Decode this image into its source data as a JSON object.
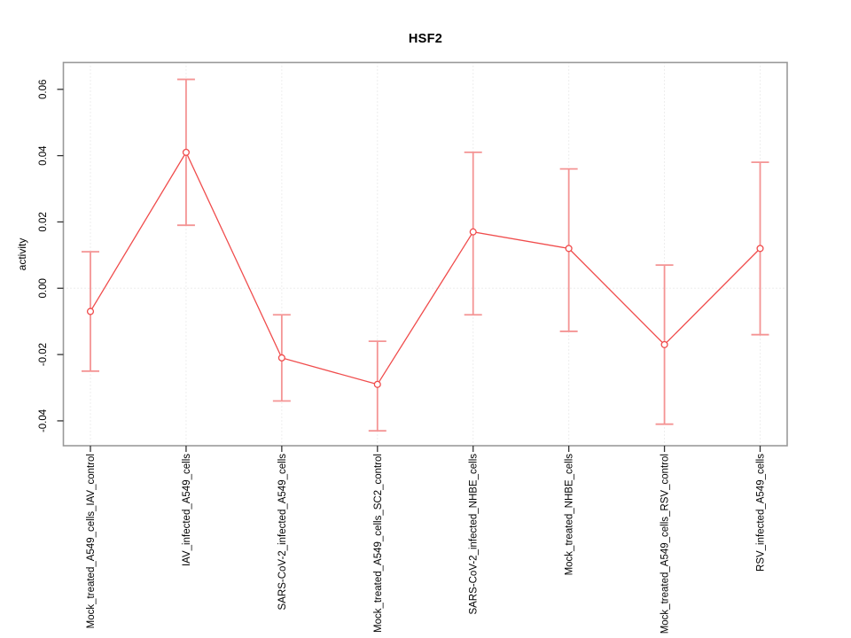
{
  "figure": {
    "background": "#ffffff"
  },
  "chart_data": {
    "type": "line",
    "subtype": "points-with-error-bars",
    "title": "HSF2",
    "xlabel": "",
    "ylabel": "activity",
    "categories": [
      "Mock_treated_A549_cells_IAV_control",
      "IAV_infected_A549_cells",
      "SARS-CoV-2_infected_A549_cells",
      "Mock_treated_A549_cells_SC2_control",
      "SARS-CoV-2_infected_NHBE_cells",
      "Mock_treated_NHBE_cells",
      "Mock_treated_A549_cells_RSV_control",
      "RSV_infected_A549_cells"
    ],
    "series": [
      {
        "name": "HSF2 activity",
        "values": [
          -0.007,
          0.041,
          -0.021,
          -0.029,
          0.017,
          0.012,
          -0.017,
          0.012
        ],
        "error_low": [
          -0.025,
          0.019,
          -0.034,
          -0.043,
          -0.008,
          -0.013,
          -0.041,
          -0.014
        ],
        "error_high": [
          0.011,
          0.063,
          -0.008,
          -0.016,
          0.041,
          0.036,
          0.007,
          0.038
        ]
      }
    ],
    "ytick_labels": [
      "-0.04",
      "-0.02",
      "0.00",
      "0.02",
      "0.04",
      "0.06"
    ],
    "ytick_values": [
      -0.04,
      -0.02,
      0,
      0.02,
      0.04,
      0.06
    ],
    "ylim": [
      -0.0475,
      0.0681
    ],
    "grid": {
      "vertical_at_categories": true,
      "horizontal_at_zero": true,
      "style": "dotted"
    },
    "legend": null,
    "marker": "open-circle",
    "colors": {
      "line": "#f04c4c",
      "error_bar": "#f49494",
      "marker_fill": "#ffffff",
      "grid": "#dcdcdc",
      "box_border": "#999999",
      "tick": "#333333",
      "text": "#000000"
    }
  }
}
